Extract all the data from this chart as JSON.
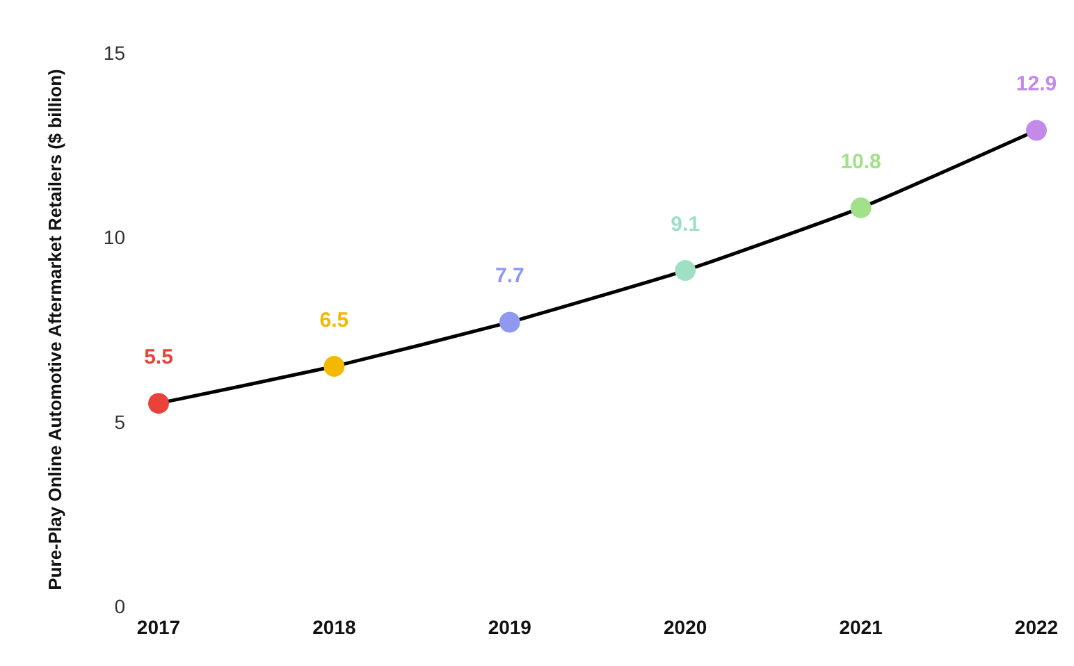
{
  "chart_data": {
    "type": "line",
    "ylabel": "Pure-Play Online Automotive Aftermarket Retailers ($ billion)",
    "categories": [
      "2017",
      "2018",
      "2019",
      "2020",
      "2021",
      "2022"
    ],
    "series": [
      {
        "color": "#000000",
        "colors": [
          "#e8423a",
          "#f5b800",
          "#8f99f0",
          "#9fe0c4",
          "#a3e08a",
          "#c38ae8"
        ],
        "values": [
          5.5,
          6.5,
          7.7,
          9.1,
          10.8,
          12.9
        ]
      }
    ],
    "ylim": [
      0,
      15
    ],
    "yticks": [
      0,
      5,
      10,
      15
    ],
    "data_labels": true,
    "marker": "circle",
    "grid": false
  }
}
